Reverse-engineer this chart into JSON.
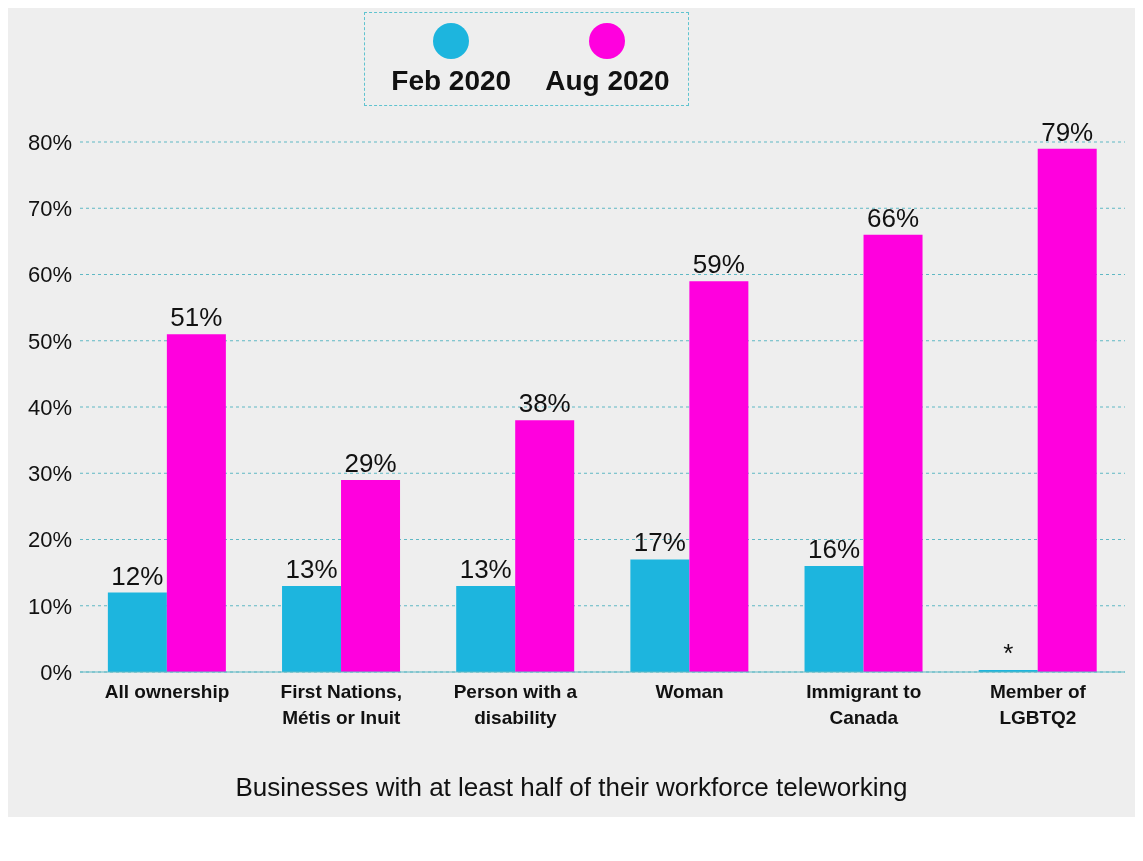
{
  "chart_data": {
    "type": "bar",
    "xlabel": "Businesses with at least half of their workforce teleworking",
    "categories": [
      "All ownership",
      "First Nations, Métis or Inuit",
      "Person with a disability",
      "Woman",
      "Immigrant to Canada",
      "Member of LGBTQ2"
    ],
    "series": [
      {
        "name": "Feb 2020",
        "color": "#1db5de",
        "values": [
          12,
          13,
          13,
          17,
          16,
          0.3
        ],
        "value_labels": [
          "12%",
          "13%",
          "13%",
          "17%",
          "16%",
          "*"
        ]
      },
      {
        "name": "Aug 2020",
        "color": "#ff00de",
        "values": [
          51,
          29,
          38,
          59,
          66,
          79
        ],
        "value_labels": [
          "51%",
          "29%",
          "38%",
          "59%",
          "66%",
          "79%"
        ]
      }
    ],
    "ylim": [
      0,
      80
    ],
    "yticks": [
      {
        "value": 0,
        "label": "0%"
      },
      {
        "value": 10,
        "label": "10%"
      },
      {
        "value": 20,
        "label": "20%"
      },
      {
        "value": 30,
        "label": "30%"
      },
      {
        "value": 40,
        "label": "40%"
      },
      {
        "value": 50,
        "label": "50%"
      },
      {
        "value": 60,
        "label": "60%"
      },
      {
        "value": 70,
        "label": "70%"
      },
      {
        "value": 80,
        "label": "80%"
      }
    ],
    "grid": "y",
    "legend": "top"
  }
}
